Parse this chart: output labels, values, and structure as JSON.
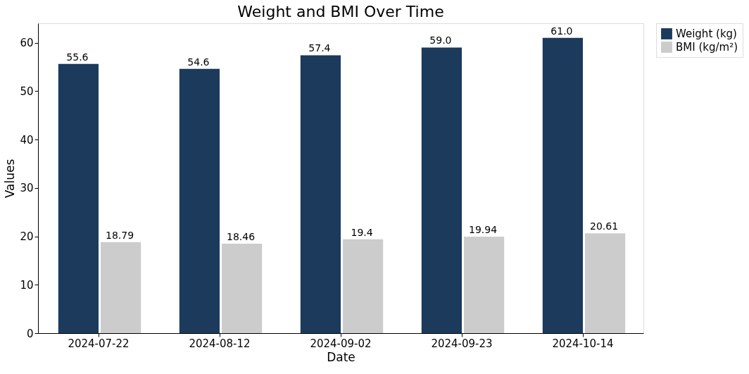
{
  "chart_data": {
    "type": "bar",
    "title": "Weight and BMI Over Time",
    "xlabel": "Date",
    "ylabel": "Values",
    "categories": [
      "2024-07-22",
      "2024-08-12",
      "2024-09-02",
      "2024-09-23",
      "2024-10-14"
    ],
    "series": [
      {
        "name": "Weight (kg)",
        "color": "#1b3a5c",
        "values": [
          55.6,
          54.6,
          57.4,
          59.0,
          61.0
        ],
        "value_labels": [
          "55.6",
          "54.6",
          "57.4",
          "59.0",
          "61.0"
        ]
      },
      {
        "name": "BMI (kg/m²)",
        "color": "#cccccc",
        "values": [
          18.79,
          18.46,
          19.4,
          19.94,
          20.61
        ],
        "value_labels": [
          "18.79",
          "18.46",
          "19.4",
          "19.94",
          "20.61"
        ]
      }
    ],
    "ylim": [
      0,
      64
    ],
    "yticks": [
      0,
      10,
      20,
      30,
      40,
      50,
      60
    ],
    "grid": false,
    "legend": "right"
  }
}
